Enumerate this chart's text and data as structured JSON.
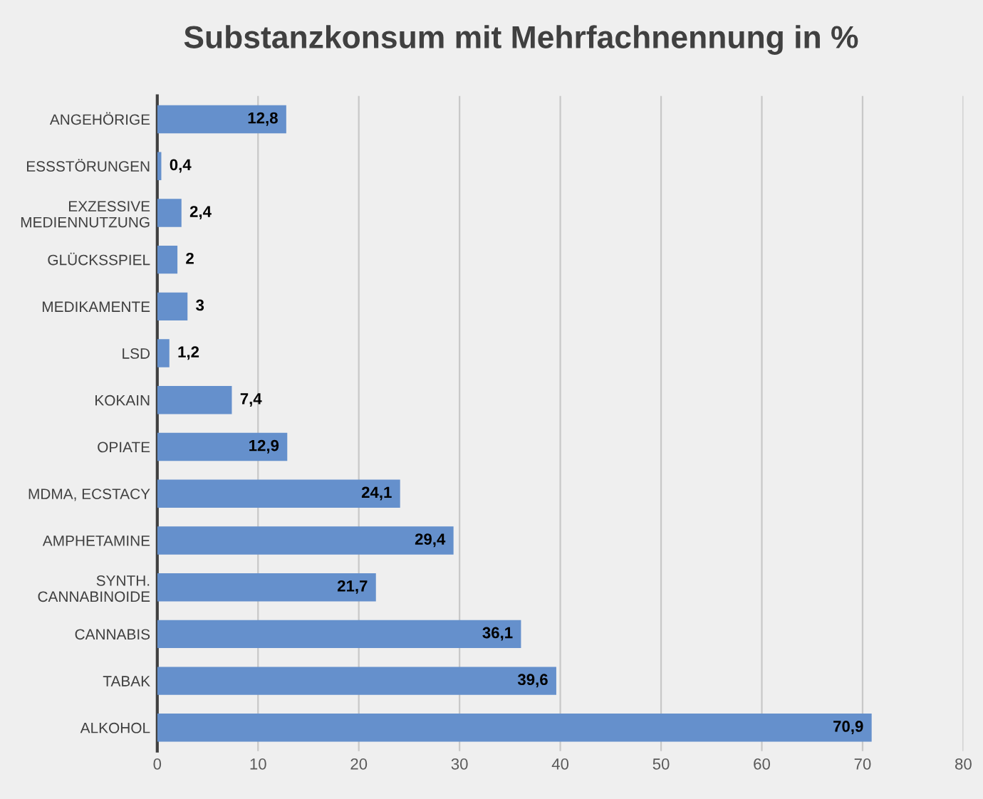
{
  "chart_data": {
    "type": "bar",
    "orientation": "horizontal",
    "title": "Substanzkonsum mit Mehrfachnennung in %",
    "categories": [
      "ANGEHÖRIGE",
      "ESSSTÖRUNGEN",
      "EXZESSIVE\nMEDIENNUTZUNG",
      "GLÜCKSSPIEL",
      "MEDIKAMENTE",
      "LSD",
      "KOKAIN",
      "OPIATE",
      "MDMA, ECSTACY",
      "AMPHETAMINE",
      "SYNTH.\nCANNABINOIDE",
      "CANNABIS",
      "TABAK",
      "ALKOHOL"
    ],
    "values": [
      12.8,
      0.4,
      2.4,
      2,
      3,
      1.2,
      7.4,
      12.9,
      24.1,
      29.4,
      21.7,
      36.1,
      39.6,
      70.9
    ],
    "value_labels": [
      "12,8",
      "0,4",
      "2,4",
      "2",
      "3",
      "1,2",
      "7,4",
      "12,9",
      "24,1",
      "29,4",
      "21,7",
      "36,1",
      "39,6",
      "70,9"
    ],
    "color": "#6590cc",
    "xlim": [
      0,
      80
    ],
    "xticks": [
      0,
      10,
      20,
      30,
      40,
      50,
      60,
      70,
      80
    ],
    "grid": "x"
  }
}
